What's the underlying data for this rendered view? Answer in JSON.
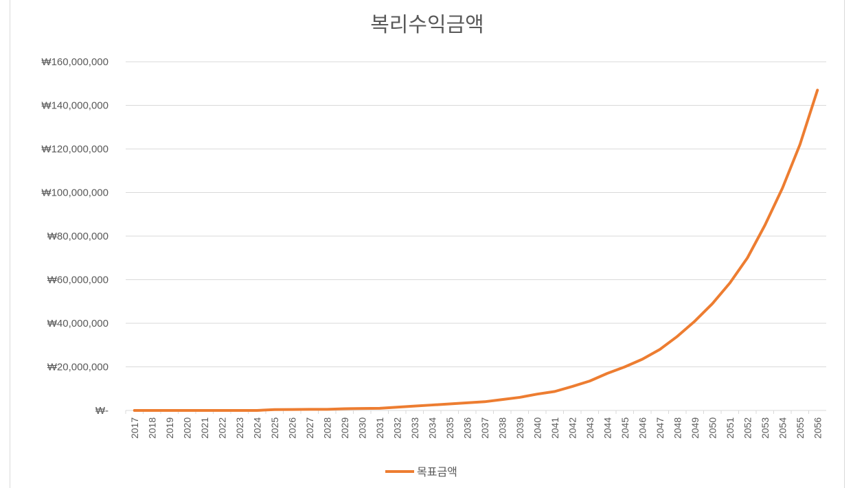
{
  "chart_data": {
    "type": "line",
    "title": "복리수익금액",
    "xlabel": "",
    "ylabel": "",
    "x": [
      "2017",
      "2018",
      "2019",
      "2020",
      "2021",
      "2022",
      "2023",
      "2024",
      "2025",
      "2026",
      "2027",
      "2028",
      "2029",
      "2030",
      "2031",
      "2032",
      "2033",
      "2034",
      "2035",
      "2036",
      "2037",
      "2038",
      "2039",
      "2040",
      "2041",
      "2042",
      "2043",
      "2044",
      "2045",
      "2046",
      "2047",
      "2048",
      "2049",
      "2050",
      "2051",
      "2052",
      "2053",
      "2054",
      "2055",
      "2056"
    ],
    "ylim": [
      0,
      160000000
    ],
    "yticks": [
      0,
      20000000,
      40000000,
      60000000,
      80000000,
      100000000,
      120000000,
      140000000,
      160000000
    ],
    "ytick_labels": [
      "₩-",
      "₩20,000,000",
      "₩40,000,000",
      "₩60,000,000",
      "₩80,000,000",
      "₩100,000,000",
      "₩120,000,000",
      "₩140,000,000",
      "₩160,000,000"
    ],
    "grid": true,
    "legend_position": "bottom",
    "series": [
      {
        "name": "목표금액",
        "color": "#ED7D31",
        "values": [
          0,
          0,
          0,
          0,
          0,
          0,
          0,
          0,
          400000,
          450000,
          500000,
          500000,
          800000,
          900000,
          1000000,
          1500000,
          2000000,
          2500000,
          3000000,
          3500000,
          4000000,
          5000000,
          6000000,
          7500000,
          8700000,
          11000000,
          13500000,
          17000000,
          20000000,
          23500000,
          28000000,
          34000000,
          41000000,
          49000000,
          58500000,
          70000000,
          85000000,
          102000000,
          122000000,
          147000000
        ]
      }
    ]
  }
}
